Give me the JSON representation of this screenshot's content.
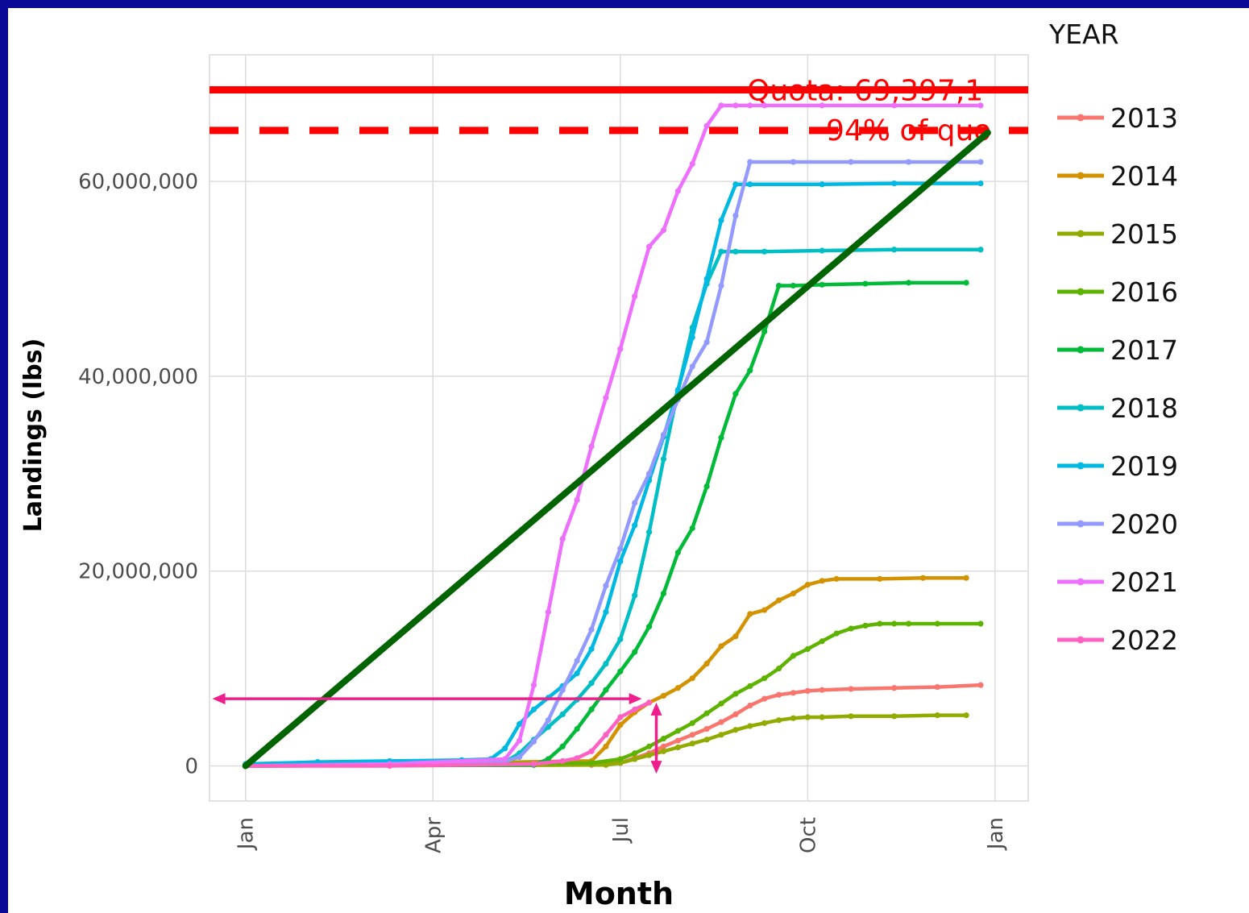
{
  "chart_data": {
    "type": "line",
    "xlabel": "Month",
    "ylabel": "Landings (lbs)",
    "x_tick_labels": [
      "Jan",
      "Apr",
      "Jul",
      "Oct",
      "Jan"
    ],
    "x_tick_weeks": [
      0,
      13,
      26,
      39,
      52
    ],
    "xlim_weeks": [
      -2.5,
      54.3
    ],
    "y_ticks": [
      0,
      20000000,
      40000000,
      60000000
    ],
    "y_tick_labels": [
      "0",
      "20,000,000",
      "40,000,000",
      "60,000,000"
    ],
    "ylim": [
      -3600000,
      73000000
    ],
    "grid": true,
    "legend": {
      "title": "YEAR",
      "position": "right"
    },
    "quota": {
      "value": 69397000,
      "label": "Quota: 69,397,1",
      "color": "#ff0000"
    },
    "quota_94": {
      "value": 65233000,
      "label": "94% of quo",
      "color": "#ff0000"
    },
    "trend_line": {
      "color": "#006400",
      "x_weeks": [
        0,
        51.5
      ],
      "y": [
        0,
        65000000
      ]
    },
    "annotation_2022": {
      "color": "#f01e8c",
      "horizontal": {
        "y": 6900000,
        "x_weeks": [
          -2.3,
          27.5
        ]
      },
      "vertical": {
        "x_weeks": [
          28.5
        ],
        "y": [
          -800000,
          6500000
        ]
      }
    },
    "series": [
      {
        "name": "2013",
        "color": "#f8766d",
        "x": [
          0,
          24,
          26,
          27,
          28,
          29,
          30,
          31,
          32,
          33,
          34,
          35,
          36,
          37,
          38,
          39,
          40,
          42,
          45,
          48,
          51
        ],
        "y": [
          0,
          100000,
          300000,
          800000,
          1300000,
          2000000,
          2600000,
          3200000,
          3800000,
          4500000,
          5300000,
          6200000,
          6900000,
          7300000,
          7500000,
          7700000,
          7800000,
          7900000,
          8000000,
          8100000,
          8300000
        ]
      },
      {
        "name": "2014",
        "color": "#d39200",
        "x": [
          0,
          24,
          25,
          26,
          27,
          28,
          29,
          30,
          31,
          32,
          33,
          34,
          35,
          36,
          37,
          38,
          39,
          40,
          41,
          44,
          47,
          50
        ],
        "y": [
          0,
          500000,
          2000000,
          4200000,
          5500000,
          6500000,
          7200000,
          8000000,
          9000000,
          10500000,
          12300000,
          13300000,
          15600000,
          16000000,
          17000000,
          17700000,
          18600000,
          19000000,
          19200000,
          19200000,
          19300000,
          19300000
        ]
      },
      {
        "name": "2015",
        "color": "#93aa00",
        "x": [
          0,
          25,
          26,
          27,
          28,
          29,
          30,
          31,
          32,
          33,
          34,
          35,
          36,
          37,
          38,
          39,
          40,
          42,
          45,
          48,
          50
        ],
        "y": [
          0,
          100000,
          300000,
          700000,
          1100000,
          1500000,
          1900000,
          2300000,
          2700000,
          3200000,
          3700000,
          4100000,
          4400000,
          4700000,
          4900000,
          5000000,
          5000000,
          5100000,
          5100000,
          5200000,
          5200000
        ]
      },
      {
        "name": "2016",
        "color": "#5eb300",
        "x": [
          0,
          24,
          26,
          27,
          28,
          29,
          30,
          31,
          32,
          33,
          34,
          35,
          36,
          37,
          38,
          39,
          40,
          41,
          42,
          43,
          44,
          45,
          46,
          48,
          51
        ],
        "y": [
          0,
          300000,
          700000,
          1300000,
          2000000,
          2800000,
          3600000,
          4400000,
          5400000,
          6400000,
          7400000,
          8200000,
          9000000,
          10000000,
          11300000,
          12000000,
          12800000,
          13600000,
          14100000,
          14400000,
          14600000,
          14600000,
          14600000,
          14600000,
          14600000
        ]
      },
      {
        "name": "2017",
        "color": "#00ba38",
        "x": [
          0,
          20,
          21,
          22,
          23,
          24,
          25,
          26,
          27,
          28,
          29,
          30,
          31,
          32,
          33,
          34,
          35,
          36,
          37,
          38,
          40,
          43,
          46,
          50
        ],
        "y": [
          0,
          100000,
          700000,
          2000000,
          3800000,
          5800000,
          7800000,
          9700000,
          11700000,
          14300000,
          17700000,
          21900000,
          24400000,
          28700000,
          33700000,
          38200000,
          40600000,
          44600000,
          49300000,
          49300000,
          49400000,
          49500000,
          49600000,
          49600000
        ]
      },
      {
        "name": "2018",
        "color": "#00bfc4",
        "x": [
          0,
          18,
          19,
          20,
          21,
          22,
          23,
          24,
          25,
          26,
          27,
          28,
          29,
          30,
          31,
          32,
          33,
          34,
          36,
          40,
          45,
          51
        ],
        "y": [
          0,
          400000,
          1300000,
          2700000,
          4000000,
          5300000,
          6800000,
          8500000,
          10500000,
          13000000,
          17500000,
          24000000,
          31500000,
          38500000,
          45000000,
          49500000,
          52800000,
          52800000,
          52800000,
          52900000,
          53000000,
          53000000
        ]
      },
      {
        "name": "2019",
        "color": "#00b9e3",
        "x": [
          0,
          5,
          10,
          15,
          17,
          18,
          19,
          20,
          21,
          22,
          23,
          24,
          25,
          26,
          27,
          28,
          29,
          30,
          31,
          32,
          33,
          34,
          35,
          40,
          45,
          51
        ],
        "y": [
          200000,
          400000,
          500000,
          600000,
          700000,
          1800000,
          4300000,
          5800000,
          7000000,
          8200000,
          9500000,
          12000000,
          15800000,
          21000000,
          24700000,
          29300000,
          33800000,
          38600000,
          44000000,
          50000000,
          56000000,
          59700000,
          59700000,
          59700000,
          59800000,
          59800000
        ]
      },
      {
        "name": "2020",
        "color": "#939aff",
        "x": [
          0,
          15,
          18,
          19,
          20,
          21,
          22,
          23,
          24,
          25,
          26,
          27,
          28,
          29,
          30,
          31,
          32,
          33,
          34,
          35,
          38,
          42,
          46,
          51
        ],
        "y": [
          0,
          300000,
          500000,
          900000,
          2500000,
          4700000,
          7800000,
          10800000,
          14000000,
          18500000,
          22300000,
          27000000,
          30000000,
          34000000,
          37600000,
          41000000,
          43500000,
          49300000,
          56500000,
          62000000,
          62000000,
          62000000,
          62000000,
          62000000
        ]
      },
      {
        "name": "2021",
        "color": "#ee6ffe",
        "x": [
          0,
          10,
          18,
          19,
          20,
          21,
          22,
          23,
          24,
          25,
          26,
          27,
          28,
          29,
          30,
          31,
          32,
          33,
          34,
          35,
          36,
          40,
          45,
          51
        ],
        "y": [
          0,
          200000,
          700000,
          2600000,
          8300000,
          15800000,
          23300000,
          27300000,
          32800000,
          37800000,
          42800000,
          48200000,
          53300000,
          55000000,
          59000000,
          61800000,
          65700000,
          67800000,
          67800000,
          67800000,
          67800000,
          67800000,
          67800000,
          67800000
        ]
      },
      {
        "name": "2022",
        "color": "#ff61c3",
        "x": [
          0,
          10,
          20,
          22,
          23,
          24,
          25,
          26,
          27,
          28
        ],
        "y": [
          0,
          0,
          200000,
          500000,
          800000,
          1500000,
          3200000,
          5000000,
          5800000,
          6500000
        ]
      }
    ]
  }
}
